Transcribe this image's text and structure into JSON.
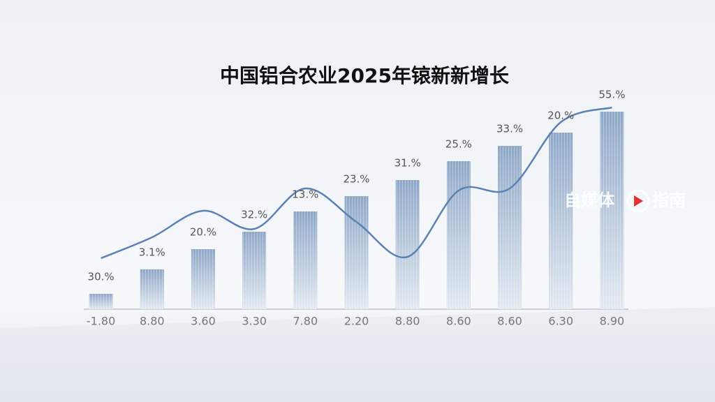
{
  "chart_data": {
    "type": "bar",
    "title": "中国铝合农业2025年锿新新增长",
    "categories": [
      "-1.80",
      "8.80",
      "3.60",
      "3.30",
      "7.80",
      "2.20",
      "8.80",
      "8.60",
      "8.60",
      "6.30",
      "8.90"
    ],
    "series": [
      {
        "type": "bar",
        "color": "#8ea7c7",
        "values": [
          22,
          57,
          86,
          111,
          140,
          162,
          185,
          212,
          234,
          253,
          283
        ]
      },
      {
        "type": "line",
        "color": "#5a82b4",
        "values": [
          73,
          103,
          141,
          115,
          173,
          125,
          75,
          170,
          173,
          268,
          289
        ]
      }
    ],
    "annotations": [
      "30.%",
      "3.1%",
      "20.%",
      "32.%",
      "13.%",
      "23.%",
      "31.%",
      "25.%",
      "33.%",
      "20.%",
      "55.%"
    ],
    "ylim": [
      0,
      300
    ],
    "watermark": [
      "自媒体",
      "指南"
    ]
  }
}
